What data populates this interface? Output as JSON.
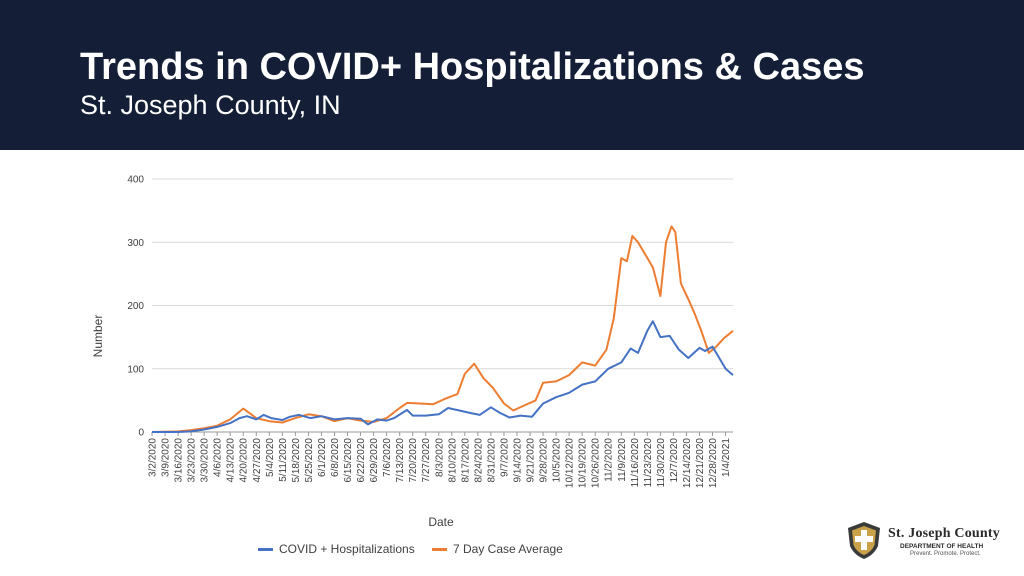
{
  "header": {
    "title": "Trends in COVID+ Hospitalizations & Cases",
    "subtitle": "St. Joseph County, IN"
  },
  "logo": {
    "name": "St. Joseph County",
    "department": "DEPARTMENT OF HEALTH",
    "tagline": "Prevent. Promote. Protect."
  },
  "colors": {
    "header_bg": "#141e36",
    "hospitalizations": "#4472c4",
    "case_average": "#ed7d31",
    "grid": "#d9d9d9"
  },
  "chart_data": {
    "type": "line",
    "xlabel": "Date",
    "ylabel": "Number",
    "ylim": [
      0,
      400
    ],
    "yticks": [
      0,
      100,
      200,
      300,
      400
    ],
    "grid": true,
    "legend_position": "bottom",
    "x_tick_labels": [
      "3/2/2020",
      "3/9/2020",
      "3/16/2020",
      "3/23/2020",
      "3/30/2020",
      "4/6/2020",
      "4/13/2020",
      "4/20/2020",
      "4/27/2020",
      "5/4/2020",
      "5/11/2020",
      "5/18/2020",
      "5/25/2020",
      "6/1/2020",
      "6/8/2020",
      "6/15/2020",
      "6/22/2020",
      "6/29/2020",
      "7/6/2020",
      "7/13/2020",
      "7/20/2020",
      "7/27/2020",
      "8/3/2020",
      "8/10/2020",
      "8/17/2020",
      "8/24/2020",
      "8/31/2020",
      "9/7/2020",
      "9/14/2020",
      "9/21/2020",
      "9/28/2020",
      "10/5/2020",
      "10/12/2020",
      "10/19/2020",
      "10/26/2020",
      "11/2/2020",
      "11/9/2020",
      "11/16/2020",
      "11/23/2020",
      "11/30/2020",
      "12/7/2020",
      "12/14/2020",
      "12/21/2020",
      "12/28/2020",
      "1/4/2021"
    ],
    "x_start": "2020-03-02",
    "x_end": "2021-01-08",
    "series": [
      {
        "name": "COVID + Hospitalizations",
        "points": [
          [
            "2020-03-02",
            0
          ],
          [
            "2020-03-16",
            0
          ],
          [
            "2020-03-23",
            1
          ],
          [
            "2020-03-30",
            4
          ],
          [
            "2020-04-06",
            8
          ],
          [
            "2020-04-13",
            14
          ],
          [
            "2020-04-18",
            22
          ],
          [
            "2020-04-22",
            25
          ],
          [
            "2020-04-27",
            20
          ],
          [
            "2020-05-01",
            27
          ],
          [
            "2020-05-05",
            22
          ],
          [
            "2020-05-11",
            19
          ],
          [
            "2020-05-15",
            24
          ],
          [
            "2020-05-20",
            27
          ],
          [
            "2020-05-26",
            22
          ],
          [
            "2020-06-01",
            25
          ],
          [
            "2020-06-08",
            20
          ],
          [
            "2020-06-15",
            22
          ],
          [
            "2020-06-22",
            21
          ],
          [
            "2020-06-26",
            12
          ],
          [
            "2020-07-01",
            20
          ],
          [
            "2020-07-06",
            18
          ],
          [
            "2020-07-10",
            22
          ],
          [
            "2020-07-17",
            35
          ],
          [
            "2020-07-20",
            26
          ],
          [
            "2020-07-27",
            26
          ],
          [
            "2020-08-03",
            28
          ],
          [
            "2020-08-08",
            38
          ],
          [
            "2020-08-14",
            34
          ],
          [
            "2020-08-20",
            30
          ],
          [
            "2020-08-25",
            27
          ],
          [
            "2020-08-31",
            39
          ],
          [
            "2020-09-05",
            30
          ],
          [
            "2020-09-10",
            23
          ],
          [
            "2020-09-16",
            26
          ],
          [
            "2020-09-22",
            24
          ],
          [
            "2020-09-28",
            45
          ],
          [
            "2020-10-05",
            55
          ],
          [
            "2020-10-12",
            62
          ],
          [
            "2020-10-19",
            75
          ],
          [
            "2020-10-26",
            80
          ],
          [
            "2020-11-02",
            100
          ],
          [
            "2020-11-09",
            110
          ],
          [
            "2020-11-14",
            132
          ],
          [
            "2020-11-18",
            125
          ],
          [
            "2020-11-23",
            160
          ],
          [
            "2020-11-26",
            175
          ],
          [
            "2020-11-30",
            150
          ],
          [
            "2020-12-05",
            152
          ],
          [
            "2020-12-10",
            130
          ],
          [
            "2020-12-15",
            117
          ],
          [
            "2020-12-21",
            133
          ],
          [
            "2020-12-24",
            128
          ],
          [
            "2020-12-28",
            135
          ],
          [
            "2021-01-01",
            115
          ],
          [
            "2021-01-04",
            100
          ],
          [
            "2021-01-08",
            90
          ]
        ]
      },
      {
        "name": "7 Day Case Average",
        "points": [
          [
            "2020-03-02",
            0
          ],
          [
            "2020-03-16",
            1
          ],
          [
            "2020-03-23",
            3
          ],
          [
            "2020-03-30",
            6
          ],
          [
            "2020-04-06",
            10
          ],
          [
            "2020-04-13",
            20
          ],
          [
            "2020-04-20",
            37
          ],
          [
            "2020-04-27",
            22
          ],
          [
            "2020-05-04",
            17
          ],
          [
            "2020-05-11",
            15
          ],
          [
            "2020-05-18",
            22
          ],
          [
            "2020-05-25",
            28
          ],
          [
            "2020-06-01",
            25
          ],
          [
            "2020-06-08",
            17
          ],
          [
            "2020-06-15",
            22
          ],
          [
            "2020-06-22",
            18
          ],
          [
            "2020-06-29",
            16
          ],
          [
            "2020-07-06",
            22
          ],
          [
            "2020-07-13",
            38
          ],
          [
            "2020-07-17",
            46
          ],
          [
            "2020-07-24",
            45
          ],
          [
            "2020-07-31",
            44
          ],
          [
            "2020-08-06",
            52
          ],
          [
            "2020-08-13",
            60
          ],
          [
            "2020-08-17",
            92
          ],
          [
            "2020-08-22",
            108
          ],
          [
            "2020-08-27",
            85
          ],
          [
            "2020-09-01",
            70
          ],
          [
            "2020-09-07",
            45
          ],
          [
            "2020-09-12",
            34
          ],
          [
            "2020-09-18",
            42
          ],
          [
            "2020-09-24",
            50
          ],
          [
            "2020-09-28",
            78
          ],
          [
            "2020-10-05",
            80
          ],
          [
            "2020-10-12",
            90
          ],
          [
            "2020-10-19",
            110
          ],
          [
            "2020-10-26",
            105
          ],
          [
            "2020-11-01",
            130
          ],
          [
            "2020-11-05",
            180
          ],
          [
            "2020-11-09",
            275
          ],
          [
            "2020-11-12",
            270
          ],
          [
            "2020-11-15",
            310
          ],
          [
            "2020-11-18",
            300
          ],
          [
            "2020-11-22",
            280
          ],
          [
            "2020-11-26",
            260
          ],
          [
            "2020-11-30",
            215
          ],
          [
            "2020-12-03",
            300
          ],
          [
            "2020-12-06",
            325
          ],
          [
            "2020-12-08",
            316
          ],
          [
            "2020-12-11",
            235
          ],
          [
            "2020-12-15",
            210
          ],
          [
            "2020-12-18",
            190
          ],
          [
            "2020-12-22",
            160
          ],
          [
            "2020-12-26",
            125
          ],
          [
            "2020-12-30",
            135
          ],
          [
            "2021-01-03",
            148
          ],
          [
            "2021-01-08",
            160
          ]
        ]
      }
    ]
  }
}
